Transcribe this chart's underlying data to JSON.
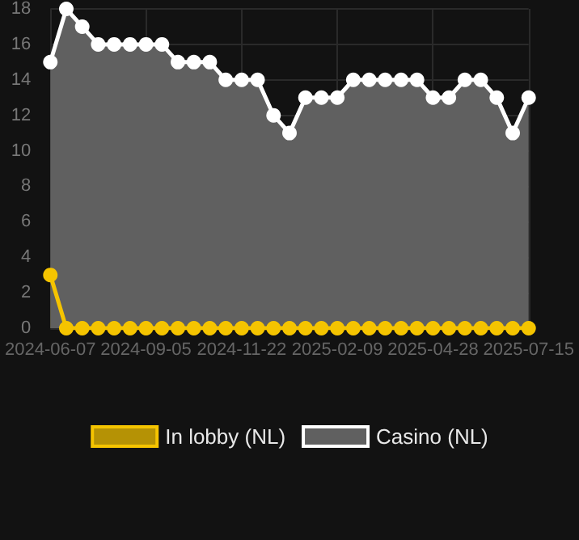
{
  "chart_data": {
    "type": "area",
    "categories": [
      "2024-06-07",
      null,
      null,
      null,
      null,
      null,
      "2024-09-05",
      null,
      null,
      null,
      null,
      null,
      "2024-11-22",
      null,
      null,
      null,
      null,
      null,
      "2025-02-09",
      null,
      null,
      null,
      null,
      null,
      "2025-04-28",
      null,
      null,
      null,
      null,
      null,
      "2025-07-15"
    ],
    "series": [
      {
        "name": "In lobby (NL)",
        "color": "#f5c400",
        "values": [
          3,
          0,
          0,
          0,
          0,
          0,
          0,
          0,
          0,
          0,
          0,
          0,
          0,
          0,
          0,
          0,
          0,
          0,
          0,
          0,
          0,
          0,
          0,
          0,
          0,
          0,
          0,
          0,
          0,
          0,
          0
        ]
      },
      {
        "name": "Casino (NL)",
        "color": "#ffffff",
        "values": [
          15,
          18,
          17,
          16,
          16,
          16,
          16,
          16,
          15,
          15,
          15,
          14,
          14,
          14,
          12,
          11,
          13,
          13,
          13,
          14,
          14,
          14,
          14,
          14,
          13,
          13,
          14,
          14,
          13,
          11,
          13
        ]
      }
    ],
    "ylim": [
      0,
      18
    ],
    "yticks": [
      0,
      2,
      4,
      6,
      8,
      10,
      12,
      14,
      16,
      18
    ],
    "grid": true,
    "legend": "bottom",
    "marker": "circle"
  }
}
